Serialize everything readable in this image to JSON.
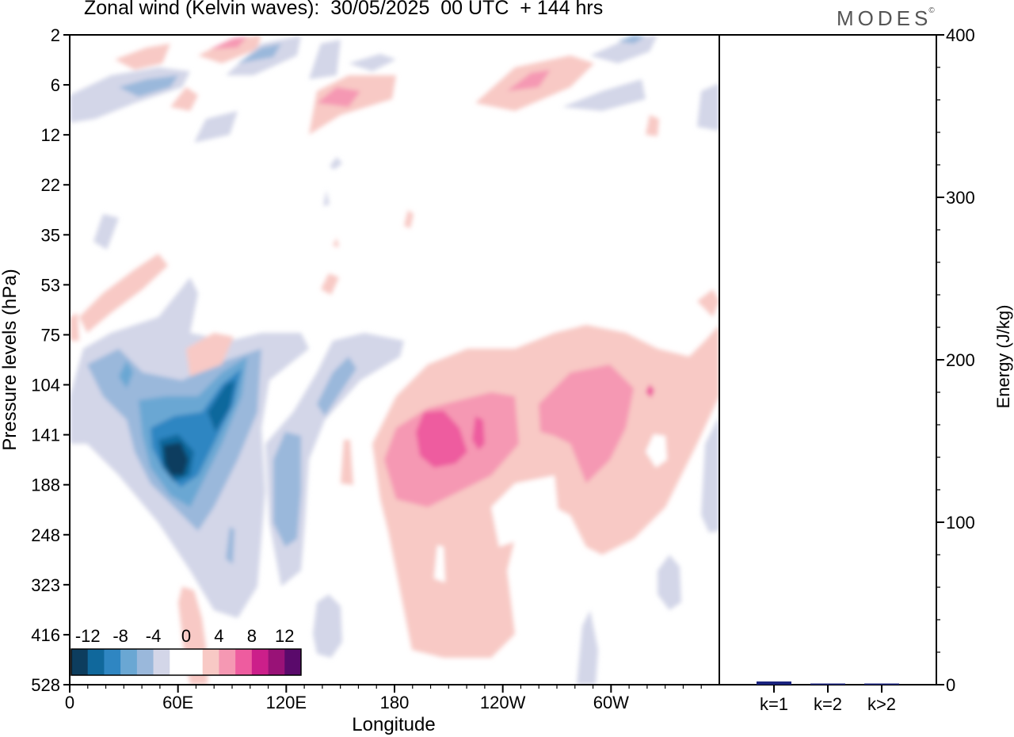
{
  "title": "Zonal wind (Kelvin waves):  30/05/2025  00 UTC  + 144 hrs",
  "brand": "MODES",
  "brand_mark": "©",
  "chart_data": [
    {
      "type": "heatmap",
      "title": "Zonal wind (Kelvin waves):  30/05/2025  00 UTC  + 144 hrs",
      "xlabel": "Longitude",
      "ylabel": "Pressure levels (hPa)",
      "x_ticks": [
        "0",
        "60E",
        "120E",
        "180",
        "120W",
        "60W"
      ],
      "y_ticks": [
        "2",
        "6",
        "12",
        "22",
        "35",
        "53",
        "75",
        "104",
        "141",
        "188",
        "248",
        "323",
        "416",
        "528"
      ],
      "colorbar": {
        "labels": [
          "-12",
          "-8",
          "-4",
          "0",
          "4",
          "8",
          "12"
        ],
        "colors": [
          "#0d3d5e",
          "#10689c",
          "#2f86c2",
          "#6aa7d3",
          "#9ab8db",
          "#d3d6e8",
          "#ffffff",
          "#ffffff",
          "#f8c9c5",
          "#f598b3",
          "#ee5c9f",
          "#cc1f8a",
          "#991277",
          "#5a0a6b"
        ]
      },
      "features": [
        {
          "value": -12,
          "x": 72,
          "y": 141
        },
        {
          "value": 8,
          "x": 190,
          "y": 130
        },
        {
          "value": 6,
          "x": 230,
          "y": 125
        },
        {
          "value": -4,
          "x": 140,
          "y": 160
        }
      ]
    },
    {
      "type": "bar",
      "categories": [
        "k=1",
        "k=2",
        "k>2"
      ],
      "values": [
        2,
        0.3,
        0.5
      ],
      "ylabel": "Energy (J/kg)",
      "ylim": [
        0,
        400
      ],
      "y_ticks": [
        0,
        100,
        200,
        300,
        400
      ],
      "bar_color": "#1a237e"
    }
  ]
}
